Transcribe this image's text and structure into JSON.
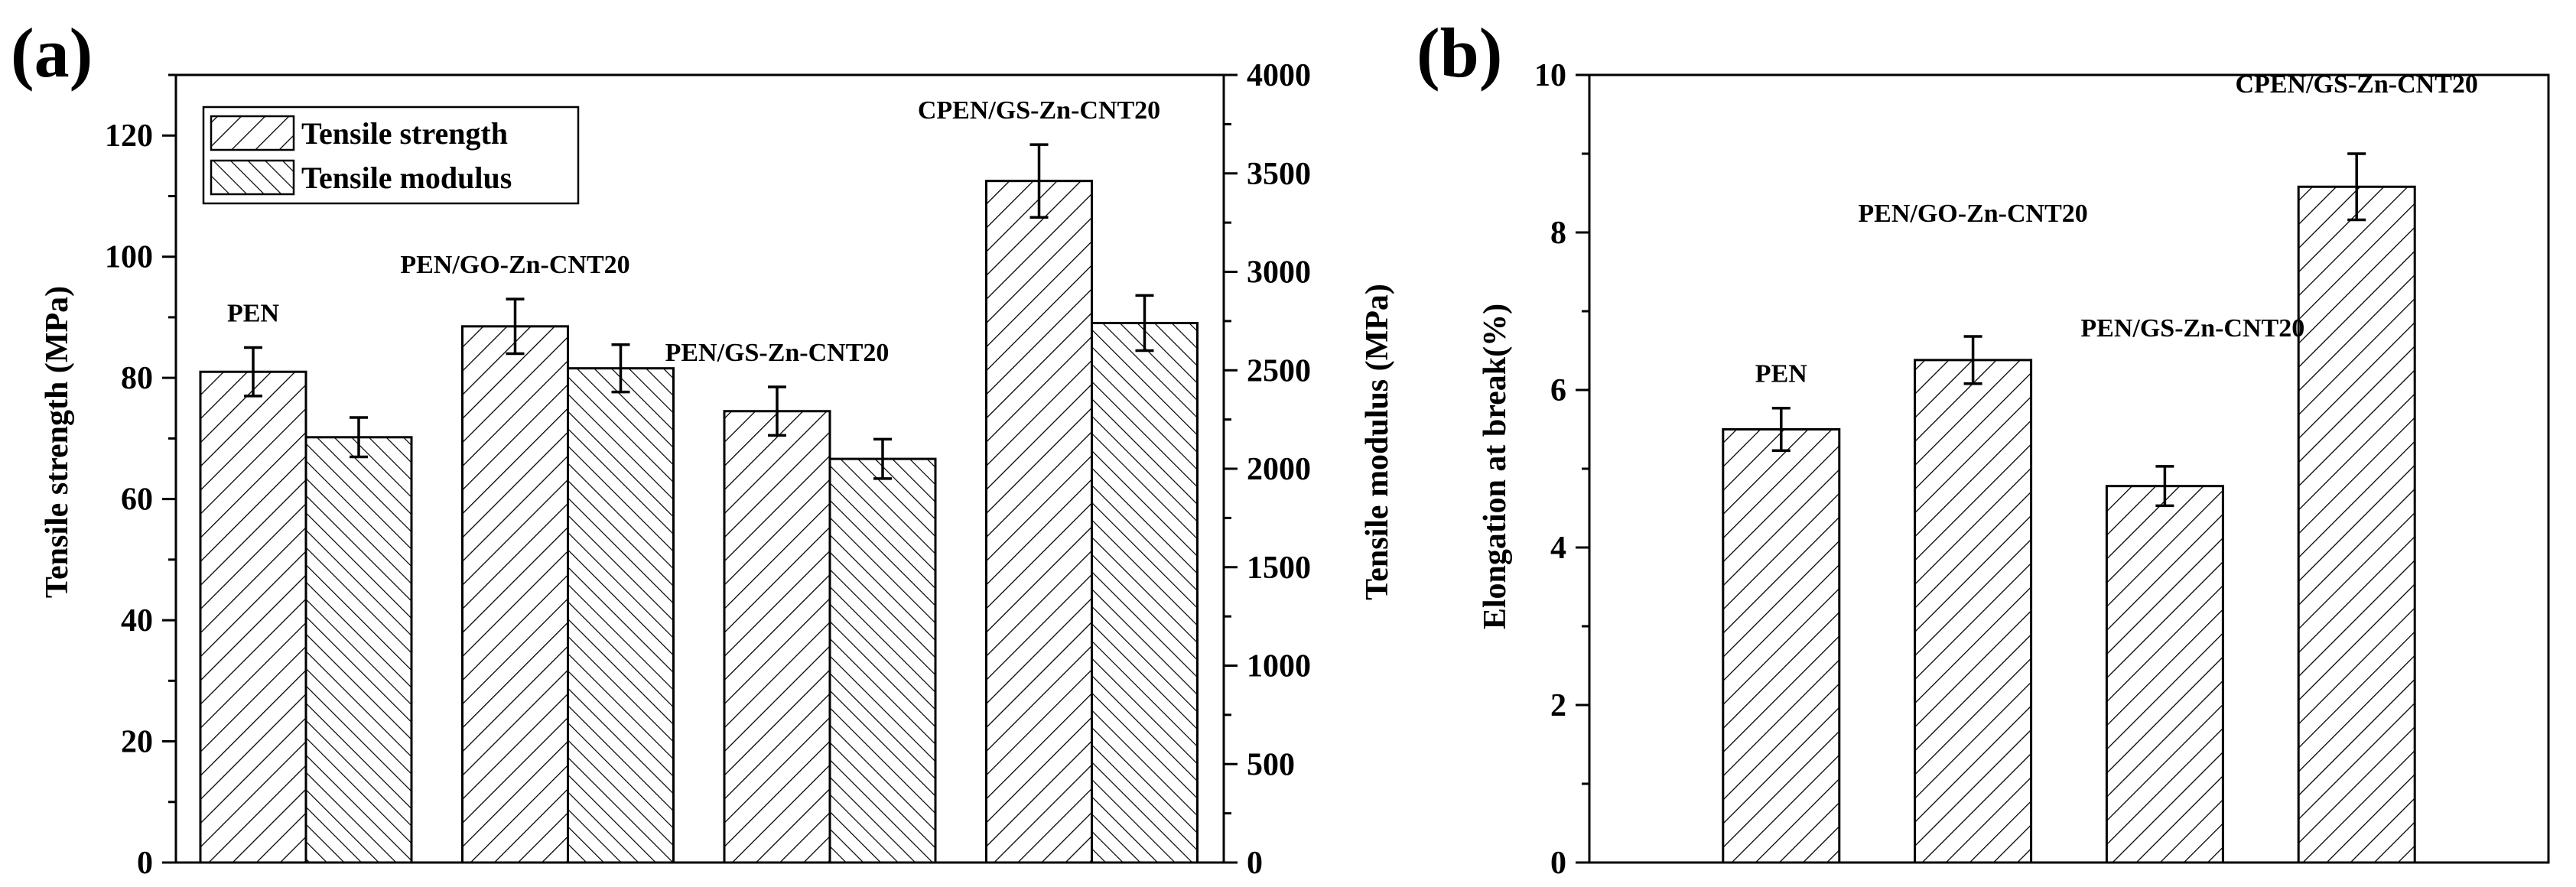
{
  "chart_data": [
    {
      "panel": "(a)",
      "type": "bar",
      "categories": [
        "PEN",
        "PEN/GO-Zn-CNT20",
        "PEN/GS-Zn-CNT20",
        "CPEN/GS-Zn-CNT20"
      ],
      "series": [
        {
          "name": "Tensile strength",
          "axis": "left",
          "pattern": "hatch-strength",
          "values": [
            81,
            88.5,
            74.5,
            112.5
          ],
          "errors": [
            4,
            4.5,
            4,
            6
          ]
        },
        {
          "name": "Tensile modulus",
          "axis": "right",
          "pattern": "hatch-modulus",
          "values": [
            2160,
            2510,
            2050,
            2740
          ],
          "errors": [
            100,
            120,
            100,
            140
          ]
        }
      ],
      "ylabel": "Tensile strength (MPa)",
      "ylim": [
        0,
        130
      ],
      "yticks": [
        0,
        20,
        40,
        60,
        80,
        100,
        120
      ],
      "y2label": "Tensile modulus (MPa)",
      "y2lim": [
        0,
        4000
      ],
      "y2ticks": [
        0,
        500,
        1000,
        1500,
        2000,
        2500,
        3000,
        3500,
        4000
      ],
      "legend_position": "top-left"
    },
    {
      "panel": "(b)",
      "type": "bar",
      "categories": [
        "PEN",
        "PEN/GO-Zn-CNT20",
        "PEN/GS-Zn-CNT20",
        "CPEN/GS-Zn-CNT20"
      ],
      "series": [
        {
          "name": "Elongation at break",
          "pattern": "hatch-strength",
          "values": [
            5.5,
            6.38,
            4.78,
            8.58
          ],
          "errors": [
            0.27,
            0.3,
            0.25,
            0.42
          ]
        }
      ],
      "ylabel": "Elongation at break(%)",
      "ylim": [
        0,
        10
      ],
      "yticks": [
        0,
        2,
        4,
        6,
        8,
        10
      ]
    }
  ]
}
